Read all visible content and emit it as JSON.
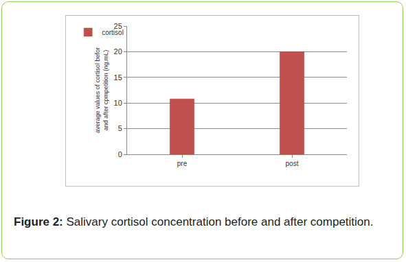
{
  "chart_data": {
    "type": "bar",
    "figure_label": "Figure 2:",
    "title": "Salivary cortisol concentration before and after competition.",
    "ylabel": [
      "average values of cortisol befor",
      "and after cpmpetition (ng.mL)"
    ],
    "categories": [
      "pre",
      "post"
    ],
    "series": [
      {
        "name": "cortisol",
        "color": "#c0504d",
        "values": [
          10.8,
          20
        ]
      }
    ],
    "ylim": [
      0,
      25
    ],
    "yticks": [
      0,
      5,
      10,
      15,
      20,
      25
    ],
    "grid": true,
    "legend": "top left"
  }
}
